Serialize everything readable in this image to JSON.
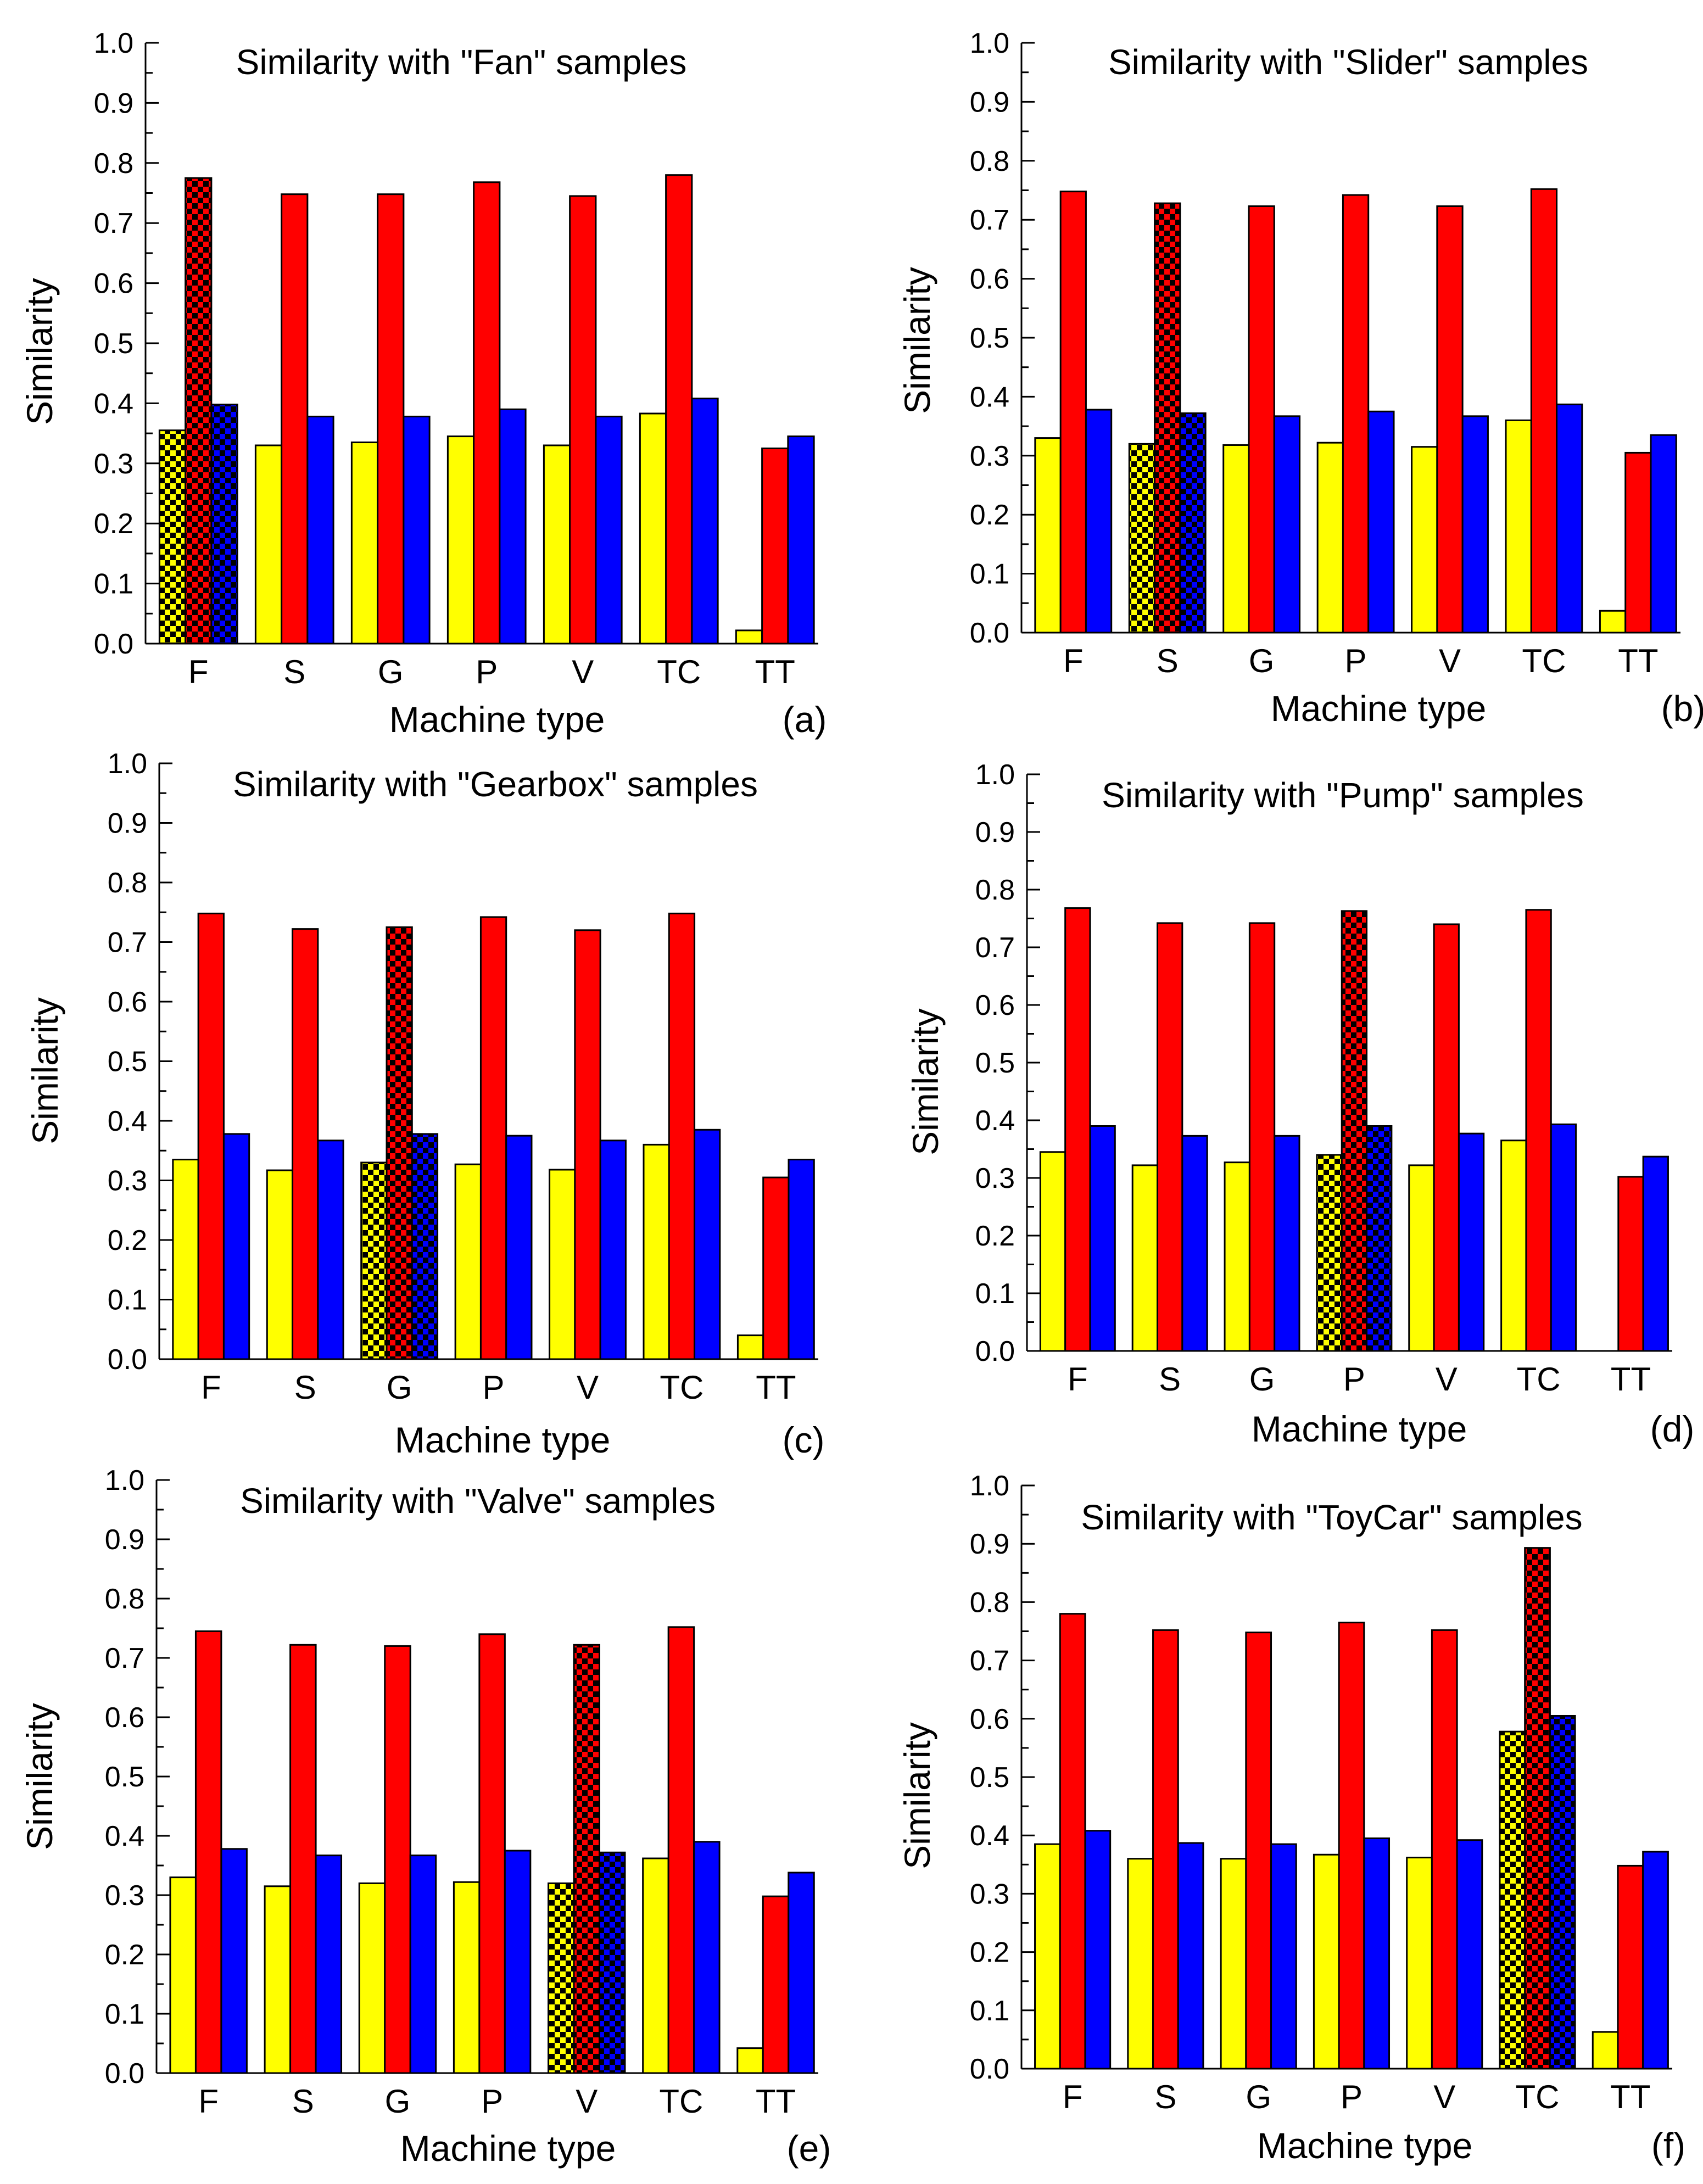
{
  "colors": {
    "yellow": "#ffff00",
    "red": "#ff0000",
    "blue": "#0000ff",
    "highlight_pattern": "#000000"
  },
  "chart_data": [
    {
      "type": "bar",
      "panel_label": "(a)",
      "title": "Similarity with \"Fan\" samples",
      "xlabel": "Machine type",
      "ylabel": "Similarity",
      "ylim": [
        0,
        1
      ],
      "yticks": [
        "0.0",
        "0.1",
        "0.2",
        "0.3",
        "0.4",
        "0.5",
        "0.6",
        "0.7",
        "0.8",
        "0.9",
        "1.0"
      ],
      "categories": [
        "F",
        "S",
        "G",
        "P",
        "V",
        "TC",
        "TT"
      ],
      "highlight_index": 0,
      "series": [
        {
          "name": "yellow",
          "color": "#ffff00",
          "values": [
            0.355,
            0.33,
            0.335,
            0.345,
            0.33,
            0.383,
            0.022
          ]
        },
        {
          "name": "red",
          "color": "#ff0000",
          "values": [
            0.775,
            0.748,
            0.748,
            0.768,
            0.745,
            0.78,
            0.325
          ]
        },
        {
          "name": "blue",
          "color": "#0000ff",
          "values": [
            0.398,
            0.378,
            0.378,
            0.39,
            0.378,
            0.408,
            0.345
          ]
        }
      ]
    },
    {
      "type": "bar",
      "panel_label": "(b)",
      "title": "Similarity with \"Slider\" samples",
      "xlabel": "Machine type",
      "ylabel": "Similarity",
      "ylim": [
        0,
        1
      ],
      "yticks": [
        "0.0",
        "0.1",
        "0.2",
        "0.3",
        "0.4",
        "0.5",
        "0.6",
        "0.7",
        "0.8",
        "0.9",
        "1.0"
      ],
      "categories": [
        "F",
        "S",
        "G",
        "P",
        "V",
        "TC",
        "TT"
      ],
      "highlight_index": 1,
      "series": [
        {
          "name": "yellow",
          "color": "#ffff00",
          "values": [
            0.33,
            0.32,
            0.318,
            0.322,
            0.315,
            0.36,
            0.037
          ]
        },
        {
          "name": "red",
          "color": "#ff0000",
          "values": [
            0.748,
            0.728,
            0.723,
            0.742,
            0.723,
            0.752,
            0.305
          ]
        },
        {
          "name": "blue",
          "color": "#0000ff",
          "values": [
            0.378,
            0.372,
            0.367,
            0.375,
            0.367,
            0.387,
            0.335
          ]
        }
      ]
    },
    {
      "type": "bar",
      "panel_label": "(c)",
      "title": "Similarity with \"Gearbox\" samples",
      "xlabel": "Machine type",
      "ylabel": "Similarity",
      "ylim": [
        0,
        1
      ],
      "yticks": [
        "0.0",
        "0.1",
        "0.2",
        "0.3",
        "0.4",
        "0.5",
        "0.6",
        "0.7",
        "0.8",
        "0.9",
        "1.0"
      ],
      "categories": [
        "F",
        "S",
        "G",
        "P",
        "V",
        "TC",
        "TT"
      ],
      "highlight_index": 2,
      "series": [
        {
          "name": "yellow",
          "color": "#ffff00",
          "values": [
            0.335,
            0.317,
            0.33,
            0.327,
            0.318,
            0.36,
            0.04
          ]
        },
        {
          "name": "red",
          "color": "#ff0000",
          "values": [
            0.748,
            0.722,
            0.725,
            0.742,
            0.72,
            0.748,
            0.305
          ]
        },
        {
          "name": "blue",
          "color": "#0000ff",
          "values": [
            0.378,
            0.367,
            0.378,
            0.375,
            0.367,
            0.385,
            0.335
          ]
        }
      ]
    },
    {
      "type": "bar",
      "panel_label": "(d)",
      "title": "Similarity with \"Pump\" samples",
      "xlabel": "Machine type",
      "ylabel": "Similarity",
      "ylim": [
        0,
        1
      ],
      "yticks": [
        "0.0",
        "0.1",
        "0.2",
        "0.3",
        "0.4",
        "0.5",
        "0.6",
        "0.7",
        "0.8",
        "0.9",
        "1.0"
      ],
      "categories": [
        "F",
        "S",
        "G",
        "P",
        "V",
        "TC",
        "TT"
      ],
      "highlight_index": 3,
      "series": [
        {
          "name": "yellow",
          "color": "#ffff00",
          "values": [
            0.345,
            0.322,
            0.327,
            0.34,
            0.322,
            0.365,
            0.0
          ]
        },
        {
          "name": "red",
          "color": "#ff0000",
          "values": [
            0.768,
            0.742,
            0.742,
            0.763,
            0.74,
            0.765,
            0.302
          ]
        },
        {
          "name": "blue",
          "color": "#0000ff",
          "values": [
            0.39,
            0.373,
            0.373,
            0.39,
            0.377,
            0.393,
            0.337
          ]
        }
      ]
    },
    {
      "type": "bar",
      "panel_label": "(e)",
      "title": "Similarity with \"Valve\" samples",
      "xlabel": "Machine type",
      "ylabel": "Similarity",
      "ylim": [
        0,
        1
      ],
      "yticks": [
        "0.0",
        "0.1",
        "0.2",
        "0.3",
        "0.4",
        "0.5",
        "0.6",
        "0.7",
        "0.8",
        "0.9",
        "1.0"
      ],
      "categories": [
        "F",
        "S",
        "G",
        "P",
        "V",
        "TC",
        "TT"
      ],
      "highlight_index": 4,
      "series": [
        {
          "name": "yellow",
          "color": "#ffff00",
          "values": [
            0.33,
            0.315,
            0.32,
            0.322,
            0.32,
            0.362,
            0.042
          ]
        },
        {
          "name": "red",
          "color": "#ff0000",
          "values": [
            0.745,
            0.722,
            0.72,
            0.74,
            0.722,
            0.752,
            0.298
          ]
        },
        {
          "name": "blue",
          "color": "#0000ff",
          "values": [
            0.378,
            0.367,
            0.367,
            0.375,
            0.372,
            0.39,
            0.338
          ]
        }
      ]
    },
    {
      "type": "bar",
      "panel_label": "(f)",
      "title": "Similarity with \"ToyCar\" samples",
      "xlabel": "Machine type",
      "ylabel": "Similarity",
      "ylim": [
        0,
        1
      ],
      "yticks": [
        "0.0",
        "0.1",
        "0.2",
        "0.3",
        "0.4",
        "0.5",
        "0.6",
        "0.7",
        "0.8",
        "0.9",
        "1.0"
      ],
      "categories": [
        "F",
        "S",
        "G",
        "P",
        "V",
        "TC",
        "TT"
      ],
      "highlight_index": 5,
      "series": [
        {
          "name": "yellow",
          "color": "#ffff00",
          "values": [
            0.385,
            0.36,
            0.36,
            0.367,
            0.362,
            0.578,
            0.063
          ]
        },
        {
          "name": "red",
          "color": "#ff0000",
          "values": [
            0.78,
            0.752,
            0.748,
            0.765,
            0.752,
            0.893,
            0.348
          ]
        },
        {
          "name": "blue",
          "color": "#0000ff",
          "values": [
            0.408,
            0.387,
            0.385,
            0.395,
            0.392,
            0.605,
            0.372
          ]
        }
      ]
    }
  ]
}
